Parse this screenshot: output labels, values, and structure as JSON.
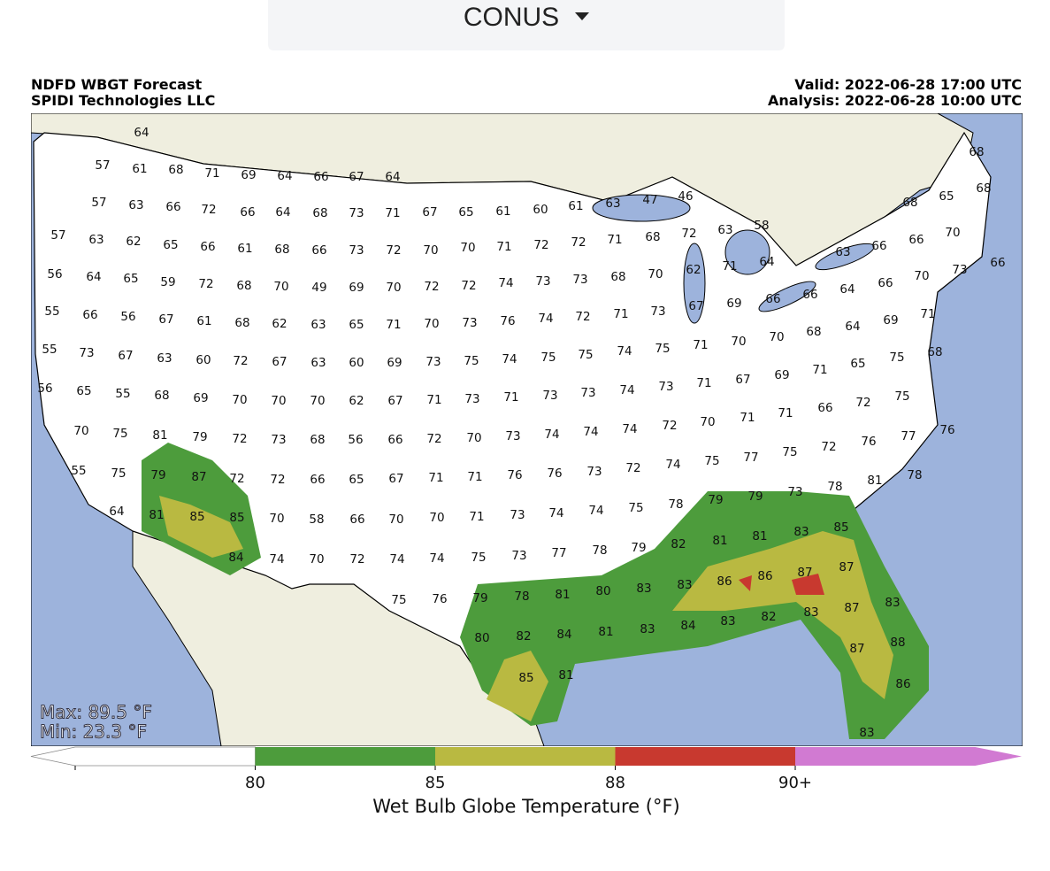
{
  "dropdown": {
    "label": "CONUS"
  },
  "map": {
    "title": "NDFD WBGT Forecast",
    "source": "SPIDI Technologies LLC",
    "valid": "Valid: 2022-06-28 17:00 UTC",
    "analysis": "Analysis: 2022-06-28 10:00 UTC",
    "max_label": "Max: 89.5 °F",
    "min_label": "Min: 23.3 °F",
    "station_values": [
      64,
      57,
      61,
      68,
      71,
      69,
      64,
      66,
      67,
      64,
      57,
      63,
      66,
      72,
      66,
      64,
      68,
      73,
      71,
      67,
      65,
      61,
      60,
      61,
      63,
      47,
      46,
      57,
      63,
      62,
      65,
      66,
      61,
      68,
      66,
      73,
      72,
      70,
      70,
      71,
      72,
      72,
      71,
      68,
      72,
      63,
      58,
      56,
      64,
      65,
      59,
      72,
      68,
      70,
      49,
      69,
      70,
      72,
      72,
      74,
      73,
      73,
      68,
      70,
      62,
      71,
      64,
      68,
      68,
      65,
      68,
      70,
      66,
      66,
      63,
      66,
      73,
      66,
      55,
      66,
      56,
      67,
      61,
      68,
      62,
      63,
      65,
      71,
      70,
      73,
      76,
      74,
      72,
      71,
      73,
      67,
      69,
      66,
      66,
      64,
      70,
      55,
      73,
      67,
      63,
      60,
      72,
      67,
      63,
      60,
      69,
      73,
      75,
      74,
      75,
      75,
      74,
      75,
      71,
      70,
      70,
      68,
      64,
      69,
      71,
      56,
      65,
      55,
      68,
      69,
      70,
      70,
      70,
      62,
      67,
      71,
      73,
      71,
      73,
      73,
      74,
      73,
      71,
      67,
      69,
      71,
      65,
      75,
      68,
      70,
      75,
      81,
      79,
      72,
      73,
      68,
      56,
      66,
      72,
      70,
      73,
      74,
      74,
      74,
      72,
      70,
      71,
      71,
      66,
      72,
      75,
      55,
      75,
      79,
      87,
      72,
      72,
      66,
      65,
      67,
      71,
      71,
      76,
      76,
      73,
      72,
      74,
      75,
      77,
      75,
      72,
      76,
      77,
      76,
      64,
      81,
      85,
      85,
      70,
      58,
      66,
      70,
      70,
      71,
      73,
      74,
      74,
      75,
      78,
      79,
      79,
      73,
      78,
      81,
      78,
      84,
      74,
      70,
      72,
      74,
      74,
      75,
      73,
      77,
      78,
      79,
      82,
      81,
      81,
      83,
      85,
      87,
      75,
      76,
      79,
      78,
      81,
      80,
      83,
      83,
      86,
      86,
      87,
      80,
      82,
      84,
      81,
      83,
      84,
      83,
      82,
      83,
      87,
      83,
      88,
      87,
      85,
      81,
      86,
      83
    ]
  },
  "colorbar": {
    "label": "Wet Bulb Globe Temperature (°F)",
    "colors": [
      "#ffffff",
      "#4d9c3c",
      "#b9b941",
      "#c8392f",
      "#d17ad2"
    ],
    "ticks": [
      80,
      85,
      88,
      {
        "value": 90,
        "label": "90+"
      }
    ]
  }
}
